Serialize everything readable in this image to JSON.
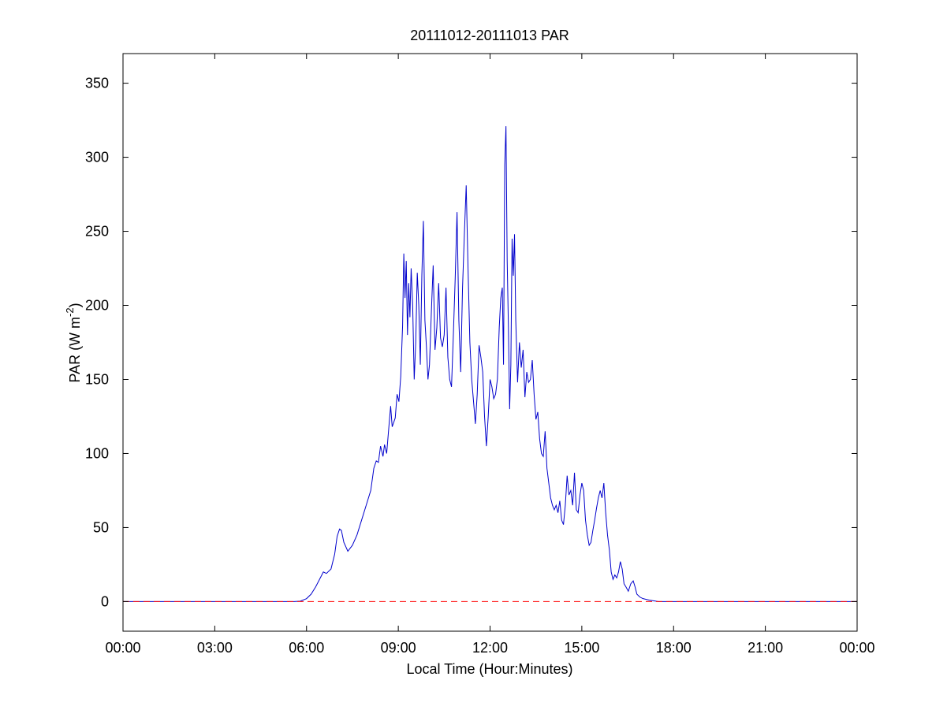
{
  "chart_data": {
    "type": "line",
    "title": "20111012-20111013 PAR",
    "xlabel": "Local Time (Hour:Minutes)",
    "ylabel": {
      "main": "PAR (W m",
      "superscript": "-2",
      "close": ")"
    },
    "x_unit": "hours",
    "xlim": [
      0,
      24
    ],
    "ylim": [
      -20,
      370
    ],
    "x_ticks": [
      0,
      3,
      6,
      9,
      12,
      15,
      18,
      21,
      24
    ],
    "x_tick_labels": [
      "00:00",
      "03:00",
      "06:00",
      "09:00",
      "12:00",
      "15:00",
      "18:00",
      "21:00",
      "00:00"
    ],
    "y_ticks": [
      0,
      50,
      100,
      150,
      200,
      250,
      300,
      350
    ],
    "y_tick_labels": [
      "0",
      "50",
      "100",
      "150",
      "200",
      "250",
      "300",
      "350"
    ],
    "grid": false,
    "series": [
      {
        "color": "#0000cc",
        "style": "solid",
        "points": [
          [
            0.0,
            0
          ],
          [
            5.6,
            0
          ],
          [
            5.8,
            0.3
          ],
          [
            6.0,
            2
          ],
          [
            6.15,
            5
          ],
          [
            6.3,
            10
          ],
          [
            6.45,
            16
          ],
          [
            6.55,
            20
          ],
          [
            6.65,
            19
          ],
          [
            6.8,
            22
          ],
          [
            6.92,
            32
          ],
          [
            7.0,
            44
          ],
          [
            7.08,
            49
          ],
          [
            7.14,
            48
          ],
          [
            7.22,
            40
          ],
          [
            7.35,
            34
          ],
          [
            7.5,
            38
          ],
          [
            7.65,
            45
          ],
          [
            7.8,
            55
          ],
          [
            7.95,
            65
          ],
          [
            8.1,
            75
          ],
          [
            8.2,
            90
          ],
          [
            8.28,
            95
          ],
          [
            8.35,
            94
          ],
          [
            8.42,
            105
          ],
          [
            8.5,
            98
          ],
          [
            8.55,
            106
          ],
          [
            8.62,
            100
          ],
          [
            8.7,
            120
          ],
          [
            8.75,
            132
          ],
          [
            8.8,
            118
          ],
          [
            8.9,
            124
          ],
          [
            8.96,
            140
          ],
          [
            9.02,
            135
          ],
          [
            9.08,
            152
          ],
          [
            9.14,
            186
          ],
          [
            9.18,
            235
          ],
          [
            9.22,
            205
          ],
          [
            9.26,
            230
          ],
          [
            9.3,
            180
          ],
          [
            9.34,
            215
          ],
          [
            9.38,
            192
          ],
          [
            9.42,
            225
          ],
          [
            9.47,
            200
          ],
          [
            9.52,
            150
          ],
          [
            9.57,
            175
          ],
          [
            9.62,
            222
          ],
          [
            9.67,
            200
          ],
          [
            9.72,
            160
          ],
          [
            9.77,
            220
          ],
          [
            9.82,
            257
          ],
          [
            9.87,
            190
          ],
          [
            9.92,
            172
          ],
          [
            9.97,
            150
          ],
          [
            10.02,
            160
          ],
          [
            10.08,
            195
          ],
          [
            10.14,
            227
          ],
          [
            10.2,
            170
          ],
          [
            10.26,
            185
          ],
          [
            10.32,
            215
          ],
          [
            10.38,
            178
          ],
          [
            10.44,
            172
          ],
          [
            10.5,
            180
          ],
          [
            10.56,
            212
          ],
          [
            10.62,
            165
          ],
          [
            10.68,
            150
          ],
          [
            10.74,
            145
          ],
          [
            10.8,
            180
          ],
          [
            10.86,
            218
          ],
          [
            10.92,
            263
          ],
          [
            10.98,
            190
          ],
          [
            11.04,
            155
          ],
          [
            11.1,
            212
          ],
          [
            11.16,
            248
          ],
          [
            11.22,
            281
          ],
          [
            11.28,
            225
          ],
          [
            11.34,
            175
          ],
          [
            11.4,
            150
          ],
          [
            11.46,
            135
          ],
          [
            11.52,
            120
          ],
          [
            11.58,
            140
          ],
          [
            11.64,
            173
          ],
          [
            11.7,
            165
          ],
          [
            11.76,
            155
          ],
          [
            11.82,
            125
          ],
          [
            11.88,
            105
          ],
          [
            11.94,
            125
          ],
          [
            12.0,
            150
          ],
          [
            12.06,
            145
          ],
          [
            12.12,
            137
          ],
          [
            12.18,
            140
          ],
          [
            12.24,
            150
          ],
          [
            12.3,
            185
          ],
          [
            12.35,
            205
          ],
          [
            12.4,
            212
          ],
          [
            12.44,
            160
          ],
          [
            12.48,
            295
          ],
          [
            12.52,
            321
          ],
          [
            12.56,
            230
          ],
          [
            12.6,
            185
          ],
          [
            12.64,
            130
          ],
          [
            12.68,
            160
          ],
          [
            12.72,
            245
          ],
          [
            12.76,
            220
          ],
          [
            12.8,
            248
          ],
          [
            12.84,
            190
          ],
          [
            12.9,
            148
          ],
          [
            12.96,
            175
          ],
          [
            13.02,
            158
          ],
          [
            13.08,
            170
          ],
          [
            13.14,
            138
          ],
          [
            13.2,
            155
          ],
          [
            13.26,
            148
          ],
          [
            13.32,
            150
          ],
          [
            13.38,
            163
          ],
          [
            13.44,
            140
          ],
          [
            13.5,
            123
          ],
          [
            13.56,
            128
          ],
          [
            13.62,
            110
          ],
          [
            13.68,
            100
          ],
          [
            13.74,
            98
          ],
          [
            13.8,
            115
          ],
          [
            13.86,
            90
          ],
          [
            13.92,
            80
          ],
          [
            13.98,
            70
          ],
          [
            14.04,
            65
          ],
          [
            14.1,
            62
          ],
          [
            14.16,
            65
          ],
          [
            14.22,
            60
          ],
          [
            14.28,
            68
          ],
          [
            14.34,
            55
          ],
          [
            14.4,
            52
          ],
          [
            14.46,
            65
          ],
          [
            14.52,
            85
          ],
          [
            14.58,
            72
          ],
          [
            14.64,
            75
          ],
          [
            14.7,
            65
          ],
          [
            14.76,
            87
          ],
          [
            14.82,
            62
          ],
          [
            14.88,
            60
          ],
          [
            14.94,
            72
          ],
          [
            15.0,
            80
          ],
          [
            15.06,
            75
          ],
          [
            15.12,
            55
          ],
          [
            15.18,
            45
          ],
          [
            15.24,
            38
          ],
          [
            15.3,
            40
          ],
          [
            15.36,
            48
          ],
          [
            15.42,
            55
          ],
          [
            15.48,
            63
          ],
          [
            15.54,
            70
          ],
          [
            15.6,
            75
          ],
          [
            15.66,
            70
          ],
          [
            15.72,
            80
          ],
          [
            15.78,
            60
          ],
          [
            15.84,
            45
          ],
          [
            15.9,
            35
          ],
          [
            15.96,
            20
          ],
          [
            16.02,
            15
          ],
          [
            16.08,
            18
          ],
          [
            16.14,
            16
          ],
          [
            16.2,
            20
          ],
          [
            16.26,
            27
          ],
          [
            16.32,
            22
          ],
          [
            16.38,
            12
          ],
          [
            16.44,
            10
          ],
          [
            16.52,
            7
          ],
          [
            16.6,
            12
          ],
          [
            16.68,
            14
          ],
          [
            16.74,
            10
          ],
          [
            16.8,
            5
          ],
          [
            16.9,
            3
          ],
          [
            17.0,
            2
          ],
          [
            17.2,
            1
          ],
          [
            17.5,
            0
          ],
          [
            17.8,
            0
          ],
          [
            24.0,
            0
          ]
        ]
      },
      {
        "color": "#ff0000",
        "style": "dashed",
        "points": [
          [
            0,
            0
          ],
          [
            24,
            0
          ]
        ]
      }
    ]
  }
}
